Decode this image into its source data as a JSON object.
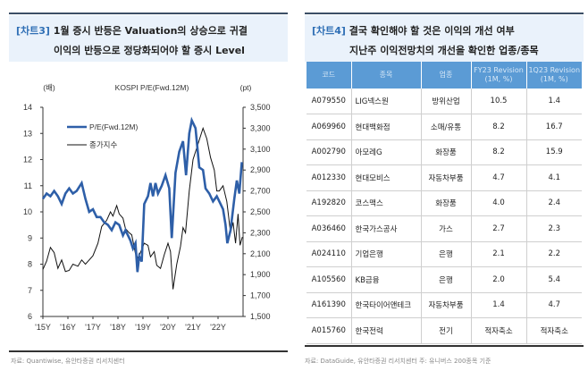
{
  "left": {
    "tag": "[차트3]",
    "title_line1": "1월 증시 반등은 Valuation의 상승으로 귀결",
    "title_line2": "이익의 반등으로 정당화되어야 할 증시 Level",
    "source": "자료: Quantiwise, 유안타증권 리서치센터"
  },
  "chart_data": {
    "type": "line",
    "title": "KOSPI P/E(Fwd.12M)",
    "ylabel": "(배)",
    "y2label": "(pt)",
    "ylim": [
      6,
      14
    ],
    "y2lim": [
      1500,
      3500
    ],
    "yticks": [
      "6",
      "7",
      "8",
      "9",
      "10",
      "11",
      "12",
      "13",
      "14"
    ],
    "y2ticks": [
      "1,500",
      "1,700",
      "1,900",
      "2,100",
      "2,300",
      "2,500",
      "2,700",
      "2,900",
      "3,100",
      "3,300",
      "3,500"
    ],
    "xticks": [
      "'15Y",
      "'16Y",
      "'17Y",
      "'18Y",
      "'19Y",
      "'20Y",
      "'21Y",
      "'22Y"
    ],
    "xlim": [
      2015,
      2023
    ],
    "legend_position": "top-left",
    "series": [
      {
        "name": "P/E(Fwd.12M)",
        "axis": "left",
        "color": "#2e5fa8",
        "points": [
          [
            2015.0,
            10.5
          ],
          [
            2015.15,
            10.7
          ],
          [
            2015.3,
            10.6
          ],
          [
            2015.45,
            10.8
          ],
          [
            2015.6,
            10.6
          ],
          [
            2015.75,
            10.3
          ],
          [
            2015.9,
            10.7
          ],
          [
            2016.05,
            10.9
          ],
          [
            2016.2,
            10.7
          ],
          [
            2016.35,
            10.8
          ],
          [
            2016.55,
            11.1
          ],
          [
            2016.7,
            10.5
          ],
          [
            2016.85,
            10.0
          ],
          [
            2017.0,
            10.1
          ],
          [
            2017.15,
            9.8
          ],
          [
            2017.3,
            9.8
          ],
          [
            2017.45,
            9.6
          ],
          [
            2017.6,
            9.5
          ],
          [
            2017.75,
            9.3
          ],
          [
            2017.9,
            9.6
          ],
          [
            2018.05,
            9.5
          ],
          [
            2018.2,
            9.1
          ],
          [
            2018.3,
            9.3
          ],
          [
            2018.4,
            9.1
          ],
          [
            2018.5,
            8.9
          ],
          [
            2018.6,
            8.6
          ],
          [
            2018.7,
            8.8
          ],
          [
            2018.78,
            7.7
          ],
          [
            2018.85,
            8.3
          ],
          [
            2018.95,
            8.1
          ],
          [
            2019.05,
            10.3
          ],
          [
            2019.2,
            10.6
          ],
          [
            2019.3,
            11.1
          ],
          [
            2019.4,
            10.6
          ],
          [
            2019.5,
            11.1
          ],
          [
            2019.6,
            10.7
          ],
          [
            2019.75,
            11.0
          ],
          [
            2019.9,
            11.4
          ],
          [
            2020.05,
            10.9
          ],
          [
            2020.15,
            9.0
          ],
          [
            2020.3,
            11.5
          ],
          [
            2020.45,
            12.3
          ],
          [
            2020.6,
            12.7
          ],
          [
            2020.72,
            11.4
          ],
          [
            2020.85,
            13.0
          ],
          [
            2020.95,
            13.5
          ],
          [
            2021.1,
            13.2
          ],
          [
            2021.25,
            11.7
          ],
          [
            2021.4,
            11.6
          ],
          [
            2021.5,
            10.9
          ],
          [
            2021.65,
            10.7
          ],
          [
            2021.8,
            10.4
          ],
          [
            2021.95,
            10.6
          ],
          [
            2022.1,
            10.3
          ],
          [
            2022.2,
            10.1
          ],
          [
            2022.3,
            9.5
          ],
          [
            2022.37,
            8.8
          ],
          [
            2022.5,
            9.3
          ],
          [
            2022.65,
            10.5
          ],
          [
            2022.75,
            11.2
          ],
          [
            2022.85,
            10.7
          ],
          [
            2022.95,
            11.9
          ]
        ]
      },
      {
        "name": "종가지수",
        "axis": "right",
        "color": "#111111",
        "points": [
          [
            2015.0,
            1950
          ],
          [
            2015.15,
            2030
          ],
          [
            2015.3,
            2160
          ],
          [
            2015.45,
            2110
          ],
          [
            2015.6,
            1960
          ],
          [
            2015.75,
            2040
          ],
          [
            2015.9,
            1930
          ],
          [
            2016.05,
            1940
          ],
          [
            2016.2,
            2000
          ],
          [
            2016.4,
            1980
          ],
          [
            2016.55,
            2040
          ],
          [
            2016.7,
            2000
          ],
          [
            2016.85,
            2040
          ],
          [
            2017.0,
            2080
          ],
          [
            2017.2,
            2200
          ],
          [
            2017.35,
            2360
          ],
          [
            2017.55,
            2420
          ],
          [
            2017.7,
            2500
          ],
          [
            2017.8,
            2460
          ],
          [
            2017.95,
            2560
          ],
          [
            2018.05,
            2480
          ],
          [
            2018.2,
            2440
          ],
          [
            2018.3,
            2340
          ],
          [
            2018.45,
            2300
          ],
          [
            2018.55,
            2280
          ],
          [
            2018.7,
            2100
          ],
          [
            2018.8,
            2060
          ],
          [
            2018.95,
            2140
          ],
          [
            2019.05,
            2200
          ],
          [
            2019.2,
            2180
          ],
          [
            2019.3,
            2070
          ],
          [
            2019.45,
            2120
          ],
          [
            2019.55,
            1990
          ],
          [
            2019.7,
            1960
          ],
          [
            2019.85,
            2090
          ],
          [
            2020.0,
            2200
          ],
          [
            2020.1,
            2120
          ],
          [
            2020.2,
            1760
          ],
          [
            2020.35,
            2000
          ],
          [
            2020.5,
            2170
          ],
          [
            2020.6,
            2350
          ],
          [
            2020.7,
            2300
          ],
          [
            2020.85,
            2700
          ],
          [
            2021.0,
            3000
          ],
          [
            2021.2,
            3150
          ],
          [
            2021.4,
            3300
          ],
          [
            2021.55,
            3200
          ],
          [
            2021.7,
            3020
          ],
          [
            2021.85,
            2900
          ],
          [
            2021.95,
            2700
          ],
          [
            2022.05,
            2700
          ],
          [
            2022.2,
            2750
          ],
          [
            2022.35,
            2600
          ],
          [
            2022.5,
            2300
          ],
          [
            2022.6,
            2400
          ],
          [
            2022.7,
            2200
          ],
          [
            2022.8,
            2480
          ],
          [
            2022.88,
            2180
          ],
          [
            2022.97,
            2260
          ]
        ]
      }
    ]
  },
  "right": {
    "tag": "[차트4]",
    "title_line1": "결국 확인해야 할 것은 이익의 개선 여부",
    "title_line2": "지난주 이익전망치의 개선을 확인한 업종/종목",
    "headers": [
      "코드",
      "종목",
      "업종",
      "FY23 Revision (1M, %)",
      "1Q23 Revision (1M, %)"
    ],
    "rows": [
      [
        "A079550",
        "LIG넥스원",
        "방위산업",
        "10.5",
        "1.4"
      ],
      [
        "A069960",
        "현대백화점",
        "소매/유통",
        "8.2",
        "16.7"
      ],
      [
        "A002790",
        "아모레G",
        "화장품",
        "8.2",
        "15.9"
      ],
      [
        "A012330",
        "현대모비스",
        "자동차부품",
        "4.7",
        "4.1"
      ],
      [
        "A192820",
        "코스맥스",
        "화장품",
        "4.0",
        "2.4"
      ],
      [
        "A036460",
        "한국가스공사",
        "가스",
        "2.7",
        "2.3"
      ],
      [
        "A024110",
        "기업은행",
        "은행",
        "2.1",
        "2.2"
      ],
      [
        "A105560",
        "KB금융",
        "은행",
        "2.0",
        "5.4"
      ],
      [
        "A161390",
        "한국타이어앤테크",
        "자동차부품",
        "1.4",
        "4.7"
      ],
      [
        "A015760",
        "한국전력",
        "전기",
        "적자축소",
        "적자축소"
      ]
    ],
    "source": "자료: DataGuide, 유안타증권 리서치센터    주: 유니버스 200종목 기준"
  }
}
